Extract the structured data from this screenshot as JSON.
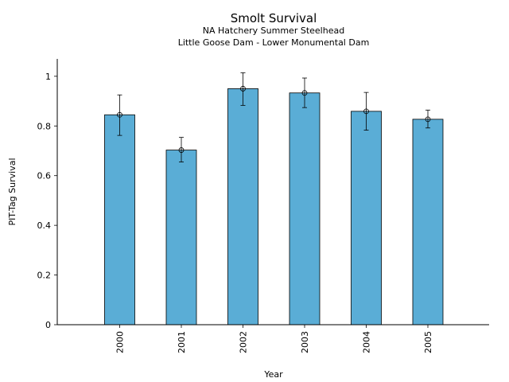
{
  "chart_data": {
    "type": "bar",
    "title": "Smolt Survival",
    "subtitle_lines": [
      "NA Hatchery Summer Steelhead",
      "Little Goose Dam - Lower Monumental Dam"
    ],
    "xlabel": "Year",
    "ylabel": "PIT-Tag Survival",
    "categories": [
      "2000",
      "2001",
      "2002",
      "2003",
      "2004",
      "2005"
    ],
    "values": [
      0.845,
      0.703,
      0.95,
      0.933,
      0.859,
      0.827
    ],
    "error_low": [
      0.762,
      0.655,
      0.883,
      0.874,
      0.783,
      0.792
    ],
    "error_high": [
      0.925,
      0.754,
      1.014,
      0.993,
      0.935,
      0.864
    ],
    "ylim": [
      0,
      1.07
    ],
    "yticks": [
      0,
      0.2,
      0.4,
      0.6,
      0.8,
      1
    ],
    "ytick_labels": [
      "0",
      "0.2",
      "0.4",
      "0.6",
      "0.8",
      "1"
    ],
    "grid": false,
    "legend": "none",
    "bar_color": "#5aadd6",
    "edge_color": "#000000"
  }
}
